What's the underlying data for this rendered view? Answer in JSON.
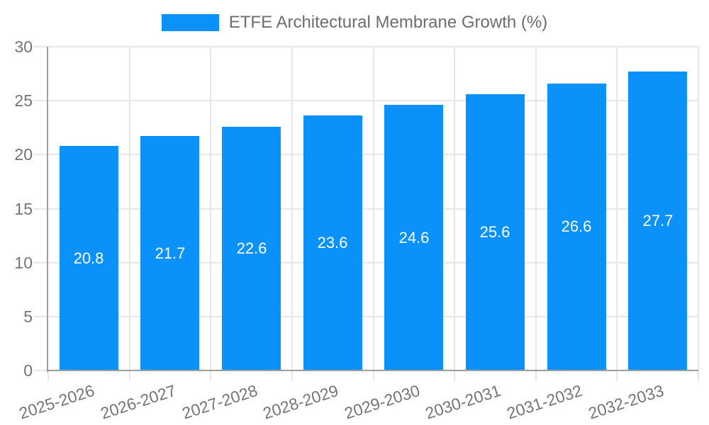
{
  "chart_data": {
    "type": "bar",
    "title": "",
    "legend_label": "ETFE Architectural Membrane Growth (%)",
    "categories": [
      "2025-2026",
      "2026-2027",
      "2027-2028",
      "2028-2029",
      "2029-2030",
      "2030-2031",
      "2031-2032",
      "2032-2033"
    ],
    "values": [
      20.8,
      21.7,
      22.6,
      23.6,
      24.6,
      25.6,
      26.6,
      27.7
    ],
    "value_labels": [
      "20.8",
      "21.7",
      "22.6",
      "23.6",
      "24.6",
      "25.6",
      "26.6",
      "27.7"
    ],
    "xlabel": "",
    "ylabel": "",
    "ylim": [
      0,
      30
    ],
    "yticks": [
      0,
      5,
      10,
      15,
      20,
      25,
      30
    ],
    "ytick_labels": [
      "0",
      "5",
      "10",
      "15",
      "20",
      "25",
      "30"
    ],
    "grid": true,
    "legend_position": "top-center",
    "bar_color": "#0a91fa",
    "value_label_color": "#ffffff",
    "value_label_position": "inside-center",
    "x_tick_rotation_deg": -18,
    "style": {
      "background": "#ffffff",
      "grid_color": "#e7e7e7",
      "axis_color": "#9e9e9e",
      "tick_label_color": "#757575",
      "legend_text_color": "#6e6e6e"
    }
  }
}
